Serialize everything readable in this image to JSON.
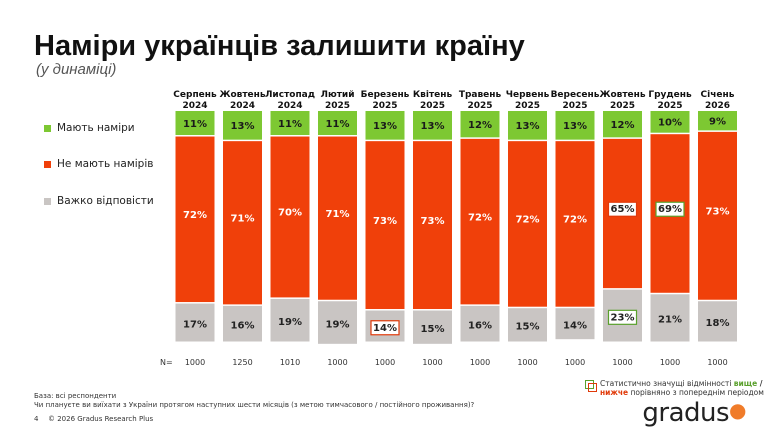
{
  "title": "Наміри українців залишити країну",
  "subtitle": "(у динаміці)",
  "chart_data": {
    "type": "bar",
    "stacked": true,
    "categories": [
      [
        "Серпень",
        "2024"
      ],
      [
        "Жовтень",
        "2024"
      ],
      [
        "Листопад",
        "2024"
      ],
      [
        "Лютий",
        "2025"
      ],
      [
        "Березень",
        "2025"
      ],
      [
        "Квітень",
        "2025"
      ],
      [
        "Травень",
        "2025"
      ],
      [
        "Червень",
        "2025"
      ],
      [
        "Вересень",
        "2025"
      ],
      [
        "Жовтень",
        "2025"
      ],
      [
        "Грудень",
        "2025"
      ],
      [
        "Січень",
        "2026"
      ]
    ],
    "series": [
      {
        "name": "Мають наміри",
        "color": "#7dc832",
        "values": [
          11,
          13,
          11,
          11,
          13,
          13,
          12,
          13,
          13,
          12,
          10,
          9
        ]
      },
      {
        "name": "Не мають намірів",
        "color": "#f0400a",
        "values": [
          72,
          71,
          70,
          71,
          73,
          73,
          72,
          72,
          72,
          65,
          69,
          73
        ]
      },
      {
        "name": "Важко відповісти",
        "color": "#c9c5c3",
        "values": [
          17,
          16,
          19,
          19,
          14,
          15,
          16,
          15,
          14,
          23,
          21,
          18
        ]
      }
    ],
    "highlights": [
      {
        "series": 2,
        "index": 4,
        "direction": "lower"
      },
      {
        "series": 1,
        "index": 9,
        "direction": "lower"
      },
      {
        "series": 2,
        "index": 9,
        "direction": "higher"
      },
      {
        "series": 1,
        "index": 10,
        "direction": "higher"
      }
    ],
    "n_label": "N=",
    "n_values": [
      1000,
      1250,
      1010,
      1000,
      1000,
      1000,
      1000,
      1000,
      1000,
      1000,
      1000,
      1000
    ],
    "legend_placement": "left"
  },
  "footer": {
    "base": "База: всі респонденти",
    "question": "Чи плануєте ви виїхати з України протягом наступних шести місяців (з метою тимчасового / постійного проживання)?",
    "page": "4",
    "copyright": "© 2026 Gradus Research Plus",
    "note_pre": "Статистично значущі відмінності ",
    "note_higher": "вище",
    "note_sep": " /",
    "note_lower": "нижче",
    "note_post": " порівняно з попереднім періодом"
  },
  "logo": "gradus",
  "colors": {
    "higher": "#5aa02c",
    "lower": "#e03a0a"
  }
}
